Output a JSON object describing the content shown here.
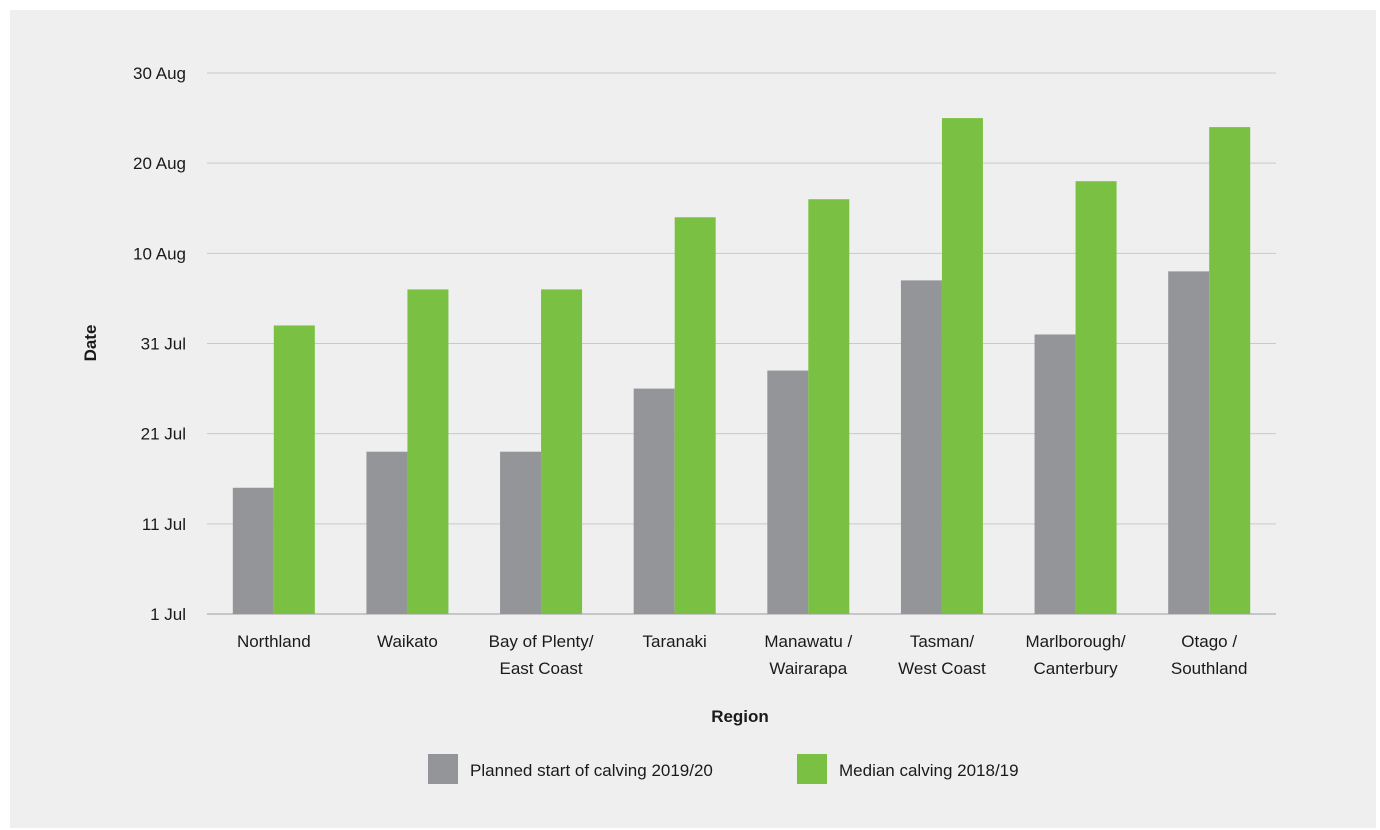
{
  "chart_data": {
    "type": "bar",
    "xlabel": "Region",
    "ylabel": "Date",
    "y_ticks": [
      "1 Jul",
      "11 Jul",
      "21 Jul",
      "31 Jul",
      "10 Aug",
      "20 Aug",
      "30 Aug"
    ],
    "ylim": [
      "1 Jul",
      "30 Aug"
    ],
    "grid": "horizontal",
    "legend_position": "bottom",
    "categories": [
      [
        "Northland"
      ],
      [
        "Waikato"
      ],
      [
        "Bay of Plenty/",
        "East Coast"
      ],
      [
        "Taranaki"
      ],
      [
        "Manawatu /",
        "Wairarapa"
      ],
      [
        "Tasman/",
        "West Coast"
      ],
      [
        "Marlborough/",
        "Canterbury"
      ],
      [
        "Otago /",
        "Southland"
      ]
    ],
    "series": [
      {
        "name": "Planned start of calving 2019/20",
        "color": "#939598",
        "values": [
          "15 Jul",
          "19 Jul",
          "19 Jul",
          "26 Jul",
          "28 Jul",
          "7 Aug",
          "1 Aug",
          "8 Aug"
        ]
      },
      {
        "name": "Median calving 2018/19",
        "color": "#7ac143",
        "values": [
          "2 Aug",
          "6 Aug",
          "6 Aug",
          "14 Aug",
          "16 Aug",
          "25 Aug",
          "18 Aug",
          "24 Aug"
        ]
      }
    ]
  }
}
